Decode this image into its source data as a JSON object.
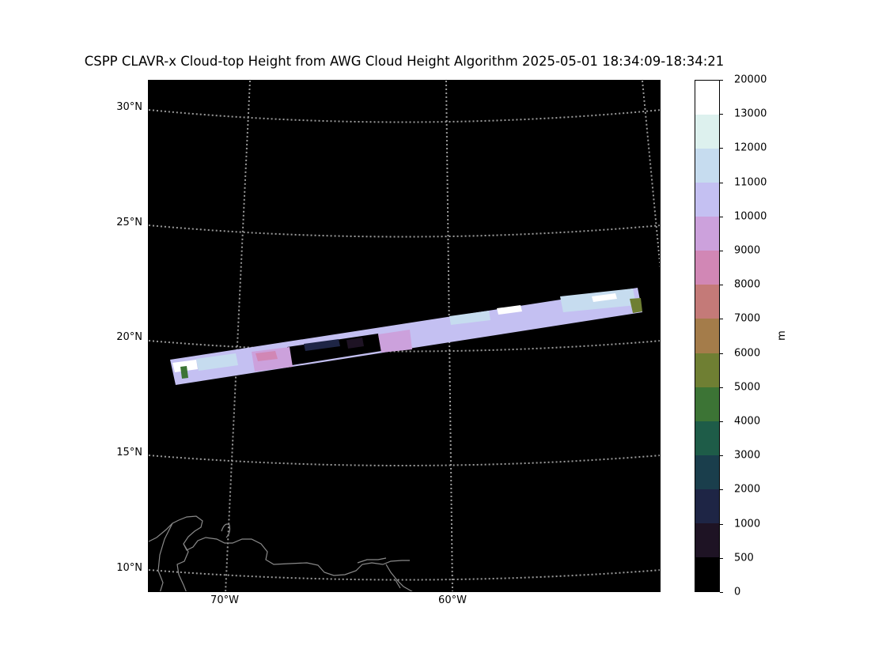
{
  "title": "CSPP CLAVR-x Cloud-top Height from AWG Cloud Height Algorithm 2025-05-01 18:34:09-18:34:21",
  "map": {
    "background_color": "#000000",
    "gridline_color": "#9a9a9a",
    "coastline_color": "#8a8a8a",
    "latitude_labels": [
      "30°N",
      "25°N",
      "20°N",
      "15°N",
      "10°N"
    ],
    "longitude_labels": [
      "70°W",
      "60°W"
    ]
  },
  "colorbar": {
    "unit": "m",
    "ticks": [
      "20000",
      "13000",
      "12000",
      "11000",
      "10000",
      "9000",
      "8000",
      "7000",
      "6000",
      "5000",
      "4000",
      "3000",
      "2000",
      "1000",
      "500",
      "0"
    ],
    "colors_top_to_bottom": [
      "#ffffff",
      "#ddf1ee",
      "#c6dcef",
      "#c4c0f2",
      "#cca1dc",
      "#d187b5",
      "#c47a78",
      "#a47c4a",
      "#6f7f33",
      "#3c7435",
      "#1e5c48",
      "#1a3e4c",
      "#1e2545",
      "#1e1324",
      "#000000"
    ]
  },
  "chart_data": {
    "type": "heatmap",
    "title": "CSPP CLAVR-x Cloud-top Height from AWG Cloud Height Algorithm 2025-05-01 18:34:09-18:34:21",
    "variable": "Cloud-top Height",
    "unit": "m",
    "levels": [
      0,
      500,
      1000,
      2000,
      3000,
      4000,
      5000,
      6000,
      7000,
      8000,
      9000,
      10000,
      11000,
      12000,
      13000,
      20000
    ],
    "lat_range": [
      9,
      31
    ],
    "lon_range": [
      -73.5,
      -52
    ],
    "swath": "narrow band from about 18°N at 73°W to about 22°N at 53°W, mostly 9000–12000 m with patches of clear/low values",
    "grid": true
  }
}
